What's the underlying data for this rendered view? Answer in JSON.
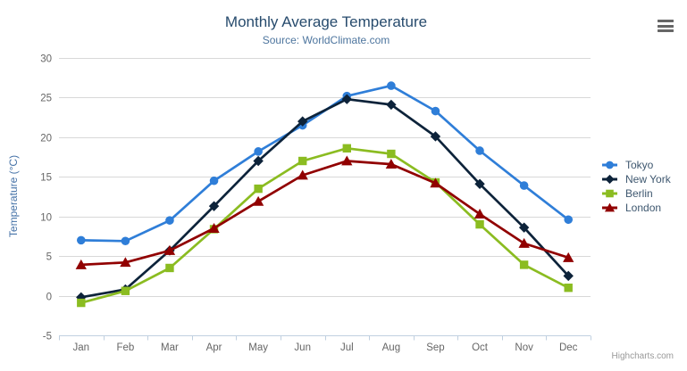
{
  "chart": {
    "title": "Monthly Average Temperature",
    "subtitle": "Source: WorldClimate.com",
    "credits": "Highcharts.com",
    "menu_icon": "hamburger-icon"
  },
  "chart_data": {
    "type": "line",
    "title": "Monthly Average Temperature",
    "subtitle": "Source: WorldClimate.com",
    "categories": [
      "Jan",
      "Feb",
      "Mar",
      "Apr",
      "May",
      "Jun",
      "Jul",
      "Aug",
      "Sep",
      "Oct",
      "Nov",
      "Dec"
    ],
    "series": [
      {
        "name": "Tokyo",
        "color": "#2f7ed8",
        "marker": "circle",
        "values": [
          7.0,
          6.9,
          9.5,
          14.5,
          18.2,
          21.5,
          25.2,
          26.5,
          23.3,
          18.3,
          13.9,
          9.6
        ]
      },
      {
        "name": "New York",
        "color": "#0d233a",
        "marker": "diamond",
        "values": [
          -0.2,
          0.8,
          5.7,
          11.3,
          17.0,
          22.0,
          24.8,
          24.1,
          20.1,
          14.1,
          8.6,
          2.5
        ]
      },
      {
        "name": "Berlin",
        "color": "#8bbc21",
        "marker": "square",
        "values": [
          -0.9,
          0.6,
          3.5,
          8.4,
          13.5,
          17.0,
          18.6,
          17.9,
          14.3,
          9.0,
          3.9,
          1.0
        ]
      },
      {
        "name": "London",
        "color": "#910000",
        "marker": "triangle",
        "values": [
          3.9,
          4.2,
          5.7,
          8.5,
          11.9,
          15.2,
          17.0,
          16.6,
          14.2,
          10.3,
          6.6,
          4.8
        ]
      }
    ],
    "xlabel": "",
    "ylabel": "Temperature (°C)",
    "ylim": [
      -5,
      30
    ],
    "ytick_step": 5,
    "grid": true,
    "legend_position": "right",
    "grid_color": "#D8D8D8",
    "axis_line_color": "#C0D0E0",
    "axis_label_color": "#666666"
  }
}
